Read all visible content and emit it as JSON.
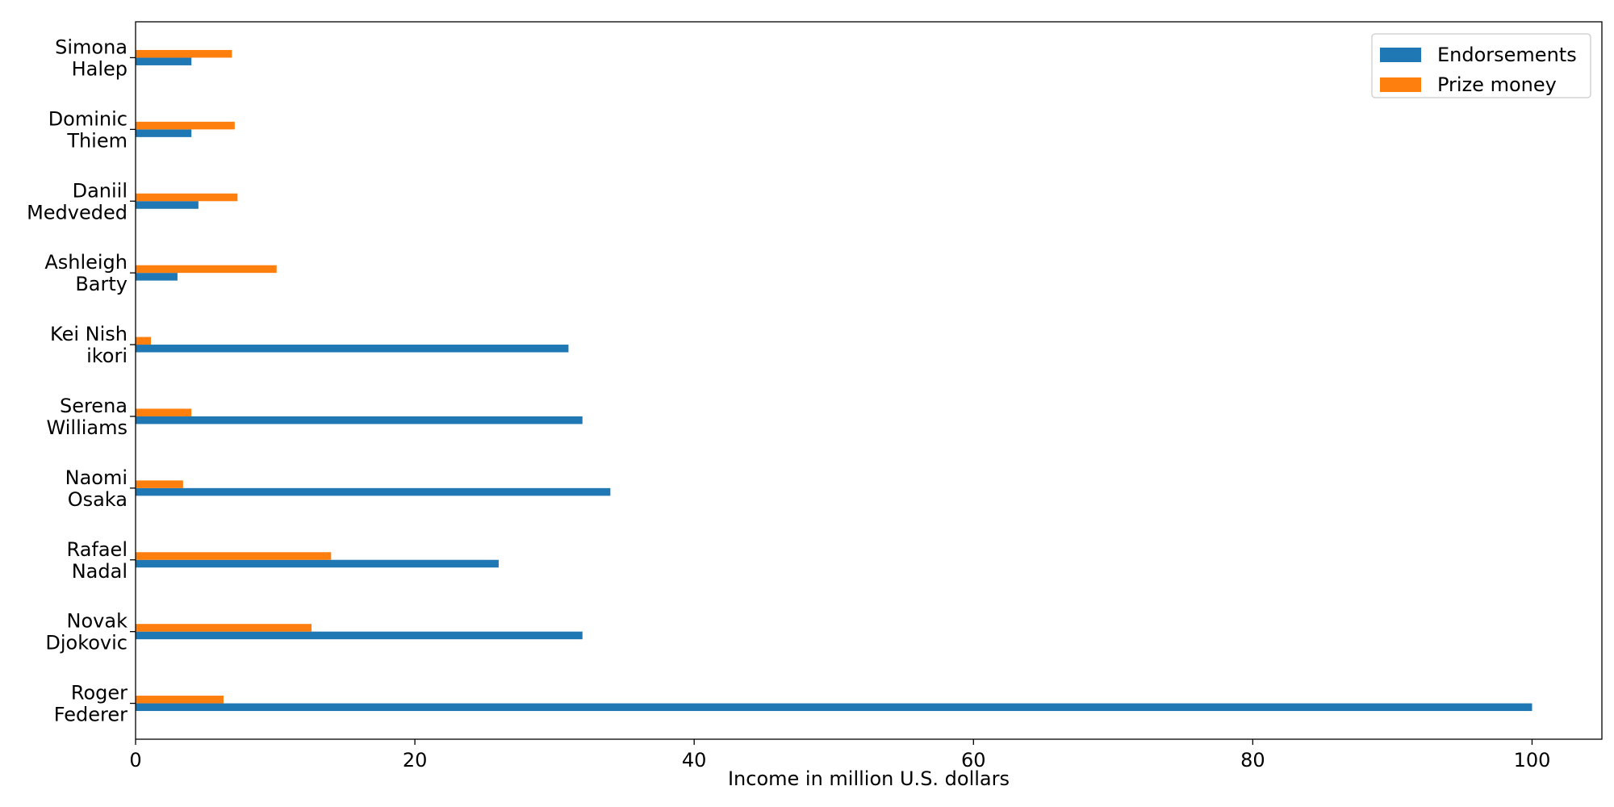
{
  "chart_data": {
    "type": "bar",
    "orientation": "horizontal",
    "title": "",
    "xlabel": "Income in million U.S. dollars",
    "ylabel": "",
    "xlim": [
      0,
      105
    ],
    "xticks": [
      0,
      20,
      40,
      60,
      80,
      100
    ],
    "grid": false,
    "legend_position": "top-right",
    "categories": [
      [
        "Roger",
        "Federer"
      ],
      [
        "Novak",
        "Djokovic"
      ],
      [
        "Rafael",
        "Nadal"
      ],
      [
        "Naomi",
        "Osaka"
      ],
      [
        "Serena",
        "Williams"
      ],
      [
        "Kei Nish",
        "ikori"
      ],
      [
        "Ashleigh",
        "Barty"
      ],
      [
        "Daniil",
        "Medveded"
      ],
      [
        "Dominic",
        "Thiem"
      ],
      [
        "Simona",
        "Halep"
      ]
    ],
    "series": [
      {
        "name": "Endorsements",
        "color": "#1f77b4",
        "values": [
          100,
          32,
          26,
          34,
          32,
          31,
          3,
          4.5,
          4,
          4
        ]
      },
      {
        "name": "Prize money",
        "color": "#ff7f0e",
        "values": [
          6.3,
          12.6,
          14,
          3.4,
          4,
          1.1,
          10.1,
          7.3,
          7.1,
          6.9
        ]
      }
    ]
  }
}
